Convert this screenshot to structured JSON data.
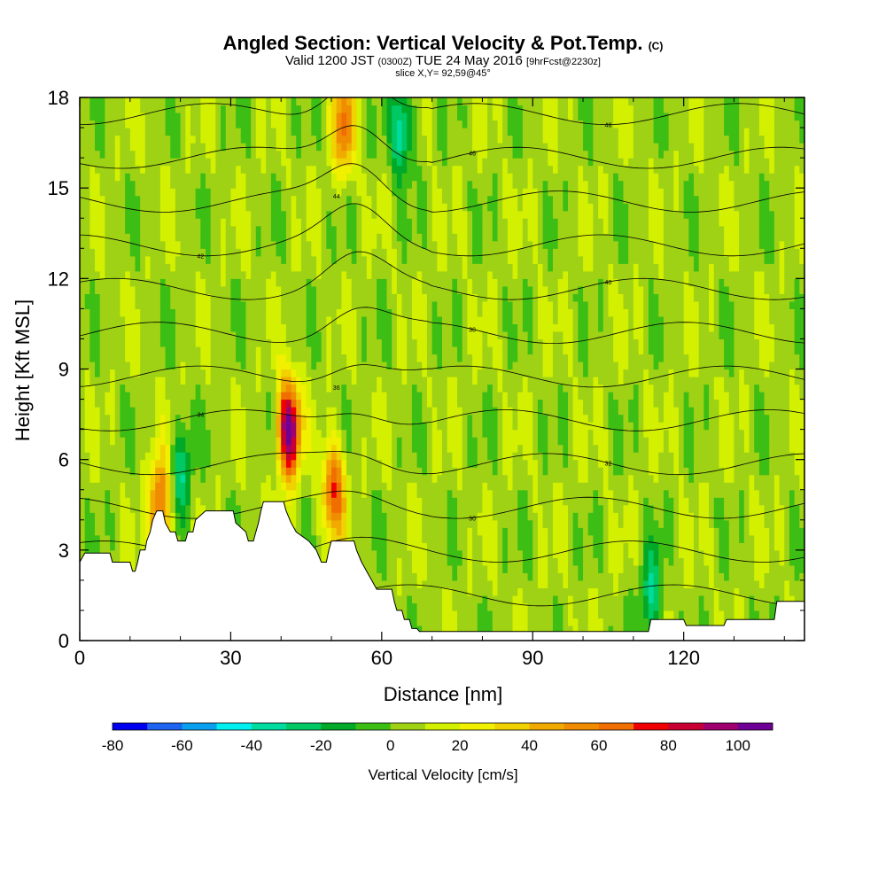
{
  "title": {
    "main": "Angled Section: Vertical Velocity & Pot.Temp.",
    "main_unit": "(C)",
    "valid_line": "Valid 1200 JST",
    "valid_utc": "(0300Z)",
    "valid_date": "TUE 24 May 2016",
    "forecast": "[9hrFcst@2230z]",
    "slice": "slice X,Y= 92,59@45°"
  },
  "chart_data": {
    "type": "heatmap",
    "xlabel": "Distance [nm]",
    "ylabel": "Height [Kft MSL]",
    "xlim": [
      0,
      144
    ],
    "ylim": [
      0,
      18
    ],
    "x_ticks": [
      0,
      30,
      60,
      90,
      120
    ],
    "y_ticks": [
      0,
      3,
      6,
      9,
      12,
      15,
      18
    ],
    "colorbar": {
      "label": "Vertical Velocity [cm/s]",
      "ticks": [
        -80,
        -60,
        -40,
        -20,
        0,
        20,
        40,
        60,
        80,
        100
      ],
      "bins": [
        -80,
        -70,
        -60,
        -50,
        -40,
        -30,
        -20,
        -10,
        0,
        10,
        20,
        30,
        40,
        50,
        60,
        70,
        80,
        90,
        100,
        110
      ],
      "colors": [
        "#0000f0",
        "#1e64f0",
        "#0aa0f0",
        "#00f0f0",
        "#00dca0",
        "#00c864",
        "#00aa28",
        "#3cbe14",
        "#9fd214",
        "#d2f000",
        "#f0f000",
        "#f0d200",
        "#f0aa00",
        "#f08c00",
        "#f06e00",
        "#f00000",
        "#c80032",
        "#a0006e",
        "#6e0096"
      ]
    },
    "terrain_profile": [
      [
        0,
        2.6
      ],
      [
        1,
        2.9
      ],
      [
        6,
        2.9
      ],
      [
        6.5,
        2.6
      ],
      [
        10,
        2.6
      ],
      [
        10.5,
        2.3
      ],
      [
        11,
        2.3
      ],
      [
        11.5,
        2.6
      ],
      [
        12,
        3.0
      ],
      [
        13,
        3.0
      ],
      [
        13.3,
        3.3
      ],
      [
        14,
        3.6
      ],
      [
        14.5,
        4.0
      ],
      [
        15.3,
        4.3
      ],
      [
        16.5,
        4.3
      ],
      [
        17,
        3.9
      ],
      [
        18,
        3.6
      ],
      [
        19,
        3.6
      ],
      [
        19.5,
        3.3
      ],
      [
        21,
        3.3
      ],
      [
        21.5,
        3.6
      ],
      [
        22.5,
        3.6
      ],
      [
        23,
        4.0
      ],
      [
        25,
        4.3
      ],
      [
        30.5,
        4.3
      ],
      [
        31,
        3.9
      ],
      [
        33,
        3.6
      ],
      [
        33.5,
        3.3
      ],
      [
        34.5,
        3.3
      ],
      [
        35,
        3.6
      ],
      [
        35.5,
        3.9
      ],
      [
        36,
        4.3
      ],
      [
        36.5,
        4.6
      ],
      [
        40.5,
        4.6
      ],
      [
        41,
        4.3
      ],
      [
        42,
        3.9
      ],
      [
        43,
        3.6
      ],
      [
        45.5,
        3.3
      ],
      [
        47,
        3.0
      ],
      [
        48,
        2.6
      ],
      [
        49,
        2.6
      ],
      [
        49.5,
        3.0
      ],
      [
        50,
        3.3
      ],
      [
        54.5,
        3.3
      ],
      [
        55,
        3.0
      ],
      [
        56,
        2.6
      ],
      [
        57,
        2.3
      ],
      [
        58,
        2.0
      ],
      [
        59,
        1.7
      ],
      [
        62,
        1.7
      ],
      [
        62.5,
        1.3
      ],
      [
        63,
        1.0
      ],
      [
        64,
        1.0
      ],
      [
        64.5,
        0.7
      ],
      [
        65.5,
        0.7
      ],
      [
        66,
        0.4
      ],
      [
        67,
        0.4
      ],
      [
        67.5,
        0.3
      ],
      [
        113,
        0.3
      ],
      [
        113.5,
        0.7
      ],
      [
        120,
        0.7
      ],
      [
        120.5,
        0.5
      ],
      [
        128,
        0.5
      ],
      [
        128.5,
        0.7
      ],
      [
        138,
        0.7
      ],
      [
        138.5,
        1.3
      ],
      [
        144,
        1.3
      ]
    ],
    "theta_isentropes_C": [
      26,
      28,
      30,
      32,
      34,
      36,
      38,
      40,
      42,
      44,
      46,
      48
    ],
    "theta_label_samples": [
      "28",
      "30",
      "32",
      "34",
      "36",
      "38",
      "40",
      "42",
      "44",
      "46",
      "48"
    ],
    "velocity_features": [
      {
        "x_center": 41.5,
        "z_center": 7.0,
        "peak_cm_s": 105,
        "type": "updraft"
      },
      {
        "x_center": 50.5,
        "z_center": 5.0,
        "peak_cm_s": 65,
        "type": "updraft"
      },
      {
        "x_center": 52.5,
        "z_center": 17.0,
        "peak_cm_s": 55,
        "type": "updraft"
      },
      {
        "x_center": 64.0,
        "z_center": 17.0,
        "peak_cm_s": -45,
        "type": "downdraft"
      },
      {
        "x_center": 20.0,
        "z_center": 5.5,
        "peak_cm_s": -35,
        "type": "downdraft"
      },
      {
        "x_center": 16.0,
        "z_center": 4.5,
        "peak_cm_s": 65,
        "type": "updraft"
      },
      {
        "x_center": 113.5,
        "z_center": 1.5,
        "peak_cm_s": -35,
        "type": "downdraft"
      }
    ]
  }
}
